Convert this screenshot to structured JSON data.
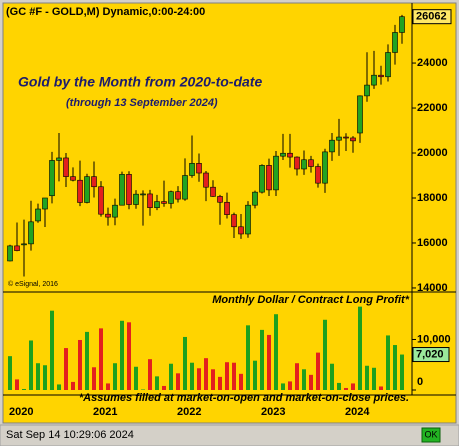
{
  "chart_data": [
    {
      "type": "candlestick",
      "header": "(GC #F - GOLD,M) Dynamic,0:00-24:00",
      "title": "Gold by the Month from 2020-to-date",
      "subtitle": "(through 13 September 2024)",
      "credit": "© eSignal, 2016",
      "categories": [
        "2020",
        null,
        null,
        null,
        null,
        null,
        null,
        null,
        null,
        null,
        null,
        null,
        "2021",
        null,
        null,
        null,
        null,
        null,
        null,
        null,
        null,
        null,
        null,
        null,
        "2022",
        null,
        null,
        null,
        null,
        null,
        null,
        null,
        null,
        null,
        null,
        null,
        "2023",
        null,
        null,
        null,
        null,
        null,
        null,
        null,
        null,
        null,
        null,
        null,
        "2024",
        null,
        null,
        null,
        null,
        null,
        null,
        null,
        null
      ],
      "open": [
        15200,
        15870,
        15940,
        15960,
        16980,
        17510,
        18100,
        19670,
        19780,
        18950,
        18790,
        17800,
        18950,
        18500,
        17280,
        17150,
        17680,
        19050,
        17710,
        18170,
        18180,
        17570,
        17840,
        17760,
        18280,
        17950,
        19000,
        19540,
        19110,
        18480,
        18070,
        17810,
        17260,
        16720,
        16400,
        17680,
        18260,
        19450,
        18360,
        19860,
        19990,
        19820,
        19290,
        19700,
        19400,
        18660,
        20050,
        20570,
        20710,
        20670,
        20890,
        22540,
        23020,
        23460,
        23390,
        24470,
        25360
      ],
      "high": [
        15920,
        16910,
        17040,
        17880,
        17750,
        18000,
        20050,
        20890,
        20000,
        19360,
        19660,
        19080,
        19620,
        18750,
        17570,
        17970,
        19170,
        19190,
        18350,
        18340,
        18360,
        18140,
        18770,
        18330,
        18530,
        19760,
        20780,
        19980,
        19200,
        18790,
        18140,
        18240,
        17350,
        17290,
        17860,
        18330,
        19500,
        19750,
        20090,
        20850,
        20850,
        19850,
        20110,
        19870,
        19530,
        20190,
        20890,
        21520,
        20880,
        20750,
        22560,
        24480,
        24540,
        23880,
        24830,
        25700,
        26140
      ],
      "low": [
        15180,
        15630,
        14510,
        15660,
        16900,
        16710,
        17760,
        18740,
        18490,
        18740,
        17640,
        17760,
        18020,
        17170,
        16770,
        16790,
        17680,
        17500,
        17520,
        16770,
        17210,
        17460,
        17610,
        17530,
        17800,
        17880,
        18900,
        18720,
        17860,
        18050,
        16810,
        17090,
        16220,
        16180,
        16230,
        17540,
        18200,
        18090,
        18090,
        19690,
        19350,
        19000,
        19030,
        19130,
        18460,
        18230,
        19650,
        19870,
        20090,
        20010,
        20450,
        22280,
        22850,
        23040,
        23180,
        23930,
        24860
      ],
      "close": [
        15870,
        15660,
        15960,
        16940,
        17510,
        18000,
        19670,
        19780,
        18950,
        18790,
        17800,
        18950,
        18500,
        17280,
        17150,
        17680,
        19050,
        17710,
        18170,
        18180,
        17570,
        17840,
        17760,
        18280,
        17950,
        19000,
        19540,
        19110,
        18480,
        18070,
        17810,
        17260,
        16720,
        16400,
        17680,
        18260,
        19450,
        18360,
        19860,
        19990,
        19820,
        19290,
        19700,
        19400,
        18660,
        20050,
        20570,
        20710,
        20670,
        20540,
        22540,
        23020,
        23460,
        23390,
        24470,
        25360,
        26062
      ],
      "up_color": "#22a322",
      "down_color": "#e3201e",
      "ylim": [
        13820,
        26670
      ],
      "yticks": [
        14000,
        16000,
        18000,
        20000,
        22000,
        24000
      ]
    },
    {
      "type": "bar",
      "title": "Monthly Dollar / Contract Long Profit*",
      "footnote": "*Assumes filled at market-on-open and market-on-close prices.",
      "values": [
        6700,
        2100,
        200,
        9800,
        5300,
        4900,
        15700,
        1100,
        8300,
        1600,
        9900,
        11500,
        4500,
        12200,
        1300,
        5300,
        13700,
        13400,
        4600,
        100,
        6100,
        2700,
        800,
        5200,
        3300,
        10500,
        5400,
        4300,
        6300,
        4100,
        2600,
        5500,
        5400,
        3200,
        12800,
        5800,
        11900,
        10900,
        15000,
        1300,
        1700,
        5300,
        4100,
        3000,
        7400,
        13900,
        5200,
        1400,
        400,
        1300,
        16500,
        4800,
        4400,
        700,
        10800,
        8900,
        7020
      ],
      "colors": [
        "#1ea01e",
        "#e3201e",
        "#1ea01e",
        "#1ea01e",
        "#1ea01e",
        "#1ea01e",
        "#1ea01e",
        "#1ea01e",
        "#e3201e",
        "#e3201e",
        "#e3201e",
        "#1ea01e",
        "#e3201e",
        "#e3201e",
        "#e3201e",
        "#1ea01e",
        "#1ea01e",
        "#e3201e",
        "#1ea01e",
        "#1ea01e",
        "#e3201e",
        "#1ea01e",
        "#e3201e",
        "#1ea01e",
        "#e3201e",
        "#1ea01e",
        "#1ea01e",
        "#e3201e",
        "#e3201e",
        "#e3201e",
        "#e3201e",
        "#e3201e",
        "#e3201e",
        "#e3201e",
        "#1ea01e",
        "#1ea01e",
        "#1ea01e",
        "#e3201e",
        "#1ea01e",
        "#1ea01e",
        "#e3201e",
        "#e3201e",
        "#1ea01e",
        "#e3201e",
        "#e3201e",
        "#1ea01e",
        "#1ea01e",
        "#1ea01e",
        "#e3201e",
        "#e3201e",
        "#1ea01e",
        "#1ea01e",
        "#1ea01e",
        "#e3201e",
        "#1ea01e",
        "#1ea01e",
        "#1ea01e"
      ],
      "value_labels": [
        null,
        null,
        null,
        null,
        null,
        null,
        null,
        null,
        null,
        null,
        null,
        null,
        null,
        null,
        null,
        null,
        null,
        null,
        null,
        null,
        null,
        null,
        null,
        null,
        null,
        null,
        null,
        null,
        null,
        null,
        null,
        null,
        null,
        null,
        null,
        null,
        null,
        null,
        null,
        null,
        null,
        null,
        null,
        null,
        null,
        null,
        null,
        null,
        null,
        null,
        null,
        null,
        null,
        null,
        null,
        null,
        "7,020"
      ],
      "ylim": [
        0,
        19200
      ],
      "yticks": [
        0,
        {
          "value": 10000,
          "label": "10,000"
        }
      ]
    }
  ],
  "status": {
    "datetime": "Sat Sep 14 10:29:06 2024",
    "button": "OK"
  }
}
